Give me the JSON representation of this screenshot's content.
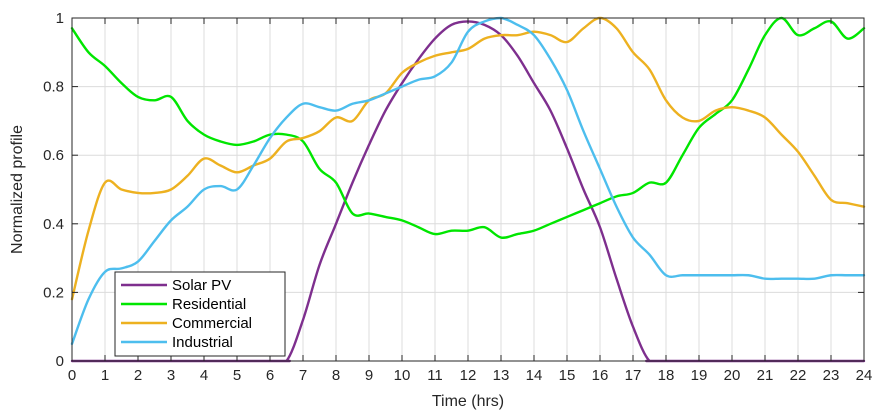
{
  "chart_data": {
    "type": "line",
    "title": "",
    "xlabel": "Time  (hrs)",
    "ylabel": "Normalized profile",
    "xlim": [
      0,
      24
    ],
    "ylim": [
      0,
      1
    ],
    "xticks": [
      0,
      1,
      2,
      3,
      4,
      5,
      6,
      7,
      8,
      9,
      10,
      11,
      12,
      13,
      14,
      15,
      16,
      17,
      18,
      19,
      20,
      21,
      22,
      23,
      24
    ],
    "yticks": [
      0,
      0.2,
      0.4,
      0.6,
      0.8,
      1
    ],
    "ytick_labels": [
      "0",
      "0.2",
      "0.4",
      "0.6",
      "0.8",
      "1"
    ],
    "grid": true,
    "legend_position": "bottom-left",
    "series": [
      {
        "name": "Solar PV",
        "color": "#7E2F8E",
        "x": [
          0,
          6,
          6.5,
          7,
          7.5,
          8,
          8.5,
          9,
          9.5,
          10,
          10.5,
          11,
          11.5,
          12,
          12.5,
          13,
          13.5,
          14,
          14.5,
          15,
          15.5,
          16,
          16.5,
          17,
          17.5,
          18,
          24
        ],
        "y": [
          0,
          0,
          0,
          0.12,
          0.28,
          0.4,
          0.52,
          0.63,
          0.73,
          0.81,
          0.88,
          0.94,
          0.98,
          0.99,
          0.98,
          0.95,
          0.89,
          0.81,
          0.73,
          0.62,
          0.5,
          0.39,
          0.24,
          0.1,
          0.0,
          0,
          0
        ]
      },
      {
        "name": "Residential",
        "color": "#00E600",
        "x": [
          0,
          0.5,
          1,
          1.5,
          2,
          2.5,
          3,
          3.5,
          4,
          4.5,
          5,
          5.5,
          6,
          6.5,
          7,
          7.5,
          8,
          8.5,
          9,
          9.5,
          10,
          10.5,
          11,
          11.5,
          12,
          12.5,
          13,
          13.5,
          14,
          14.5,
          15,
          15.5,
          16,
          16.5,
          17,
          17.5,
          18,
          18.5,
          19,
          19.5,
          20,
          20.5,
          21,
          21.5,
          22,
          22.5,
          23,
          23.5,
          24
        ],
        "y": [
          0.97,
          0.9,
          0.86,
          0.81,
          0.77,
          0.76,
          0.77,
          0.7,
          0.66,
          0.64,
          0.63,
          0.64,
          0.66,
          0.66,
          0.64,
          0.56,
          0.52,
          0.43,
          0.43,
          0.42,
          0.41,
          0.39,
          0.37,
          0.38,
          0.38,
          0.39,
          0.36,
          0.37,
          0.38,
          0.4,
          0.42,
          0.44,
          0.46,
          0.48,
          0.49,
          0.52,
          0.52,
          0.6,
          0.68,
          0.72,
          0.76,
          0.85,
          0.95,
          1.0,
          0.95,
          0.97,
          0.99,
          0.94,
          0.97
        ]
      },
      {
        "name": "Commercial",
        "color": "#EDB120",
        "x": [
          0,
          0.5,
          1,
          1.5,
          2,
          2.5,
          3,
          3.5,
          4,
          4.5,
          5,
          5.5,
          6,
          6.5,
          7,
          7.5,
          8,
          8.5,
          9,
          9.5,
          10,
          10.5,
          11,
          11.5,
          12,
          12.5,
          13,
          13.5,
          14,
          14.5,
          15,
          15.5,
          16,
          16.5,
          17,
          17.5,
          18,
          18.5,
          19,
          19.5,
          20,
          20.5,
          21,
          21.5,
          22,
          22.5,
          23,
          23.5,
          24
        ],
        "y": [
          0.18,
          0.38,
          0.52,
          0.5,
          0.49,
          0.49,
          0.5,
          0.54,
          0.59,
          0.57,
          0.55,
          0.57,
          0.59,
          0.64,
          0.65,
          0.67,
          0.71,
          0.7,
          0.76,
          0.78,
          0.84,
          0.87,
          0.89,
          0.9,
          0.91,
          0.94,
          0.95,
          0.95,
          0.96,
          0.95,
          0.93,
          0.97,
          1.0,
          0.97,
          0.9,
          0.85,
          0.76,
          0.71,
          0.7,
          0.73,
          0.74,
          0.73,
          0.71,
          0.66,
          0.61,
          0.54,
          0.47,
          0.46,
          0.45
        ]
      },
      {
        "name": "Industrial",
        "color": "#4DBEEE",
        "x": [
          0,
          0.5,
          1,
          1.5,
          2,
          2.5,
          3,
          3.5,
          4,
          4.5,
          5,
          5.5,
          6,
          6.5,
          7,
          7.5,
          8,
          8.5,
          9,
          9.5,
          10,
          10.5,
          11,
          11.5,
          12,
          12.5,
          13,
          13.5,
          14,
          14.5,
          15,
          15.5,
          16,
          16.5,
          17,
          17.5,
          18,
          18.5,
          19,
          19.5,
          20,
          20.5,
          21,
          21.5,
          22,
          22.5,
          23,
          23.5,
          24
        ],
        "y": [
          0.05,
          0.18,
          0.26,
          0.27,
          0.29,
          0.35,
          0.41,
          0.45,
          0.5,
          0.51,
          0.5,
          0.57,
          0.65,
          0.71,
          0.75,
          0.74,
          0.73,
          0.75,
          0.76,
          0.78,
          0.8,
          0.82,
          0.83,
          0.87,
          0.96,
          0.99,
          1.0,
          0.98,
          0.95,
          0.88,
          0.79,
          0.67,
          0.56,
          0.45,
          0.36,
          0.31,
          0.25,
          0.25,
          0.25,
          0.25,
          0.25,
          0.25,
          0.24,
          0.24,
          0.24,
          0.24,
          0.25,
          0.25,
          0.25
        ]
      }
    ]
  }
}
